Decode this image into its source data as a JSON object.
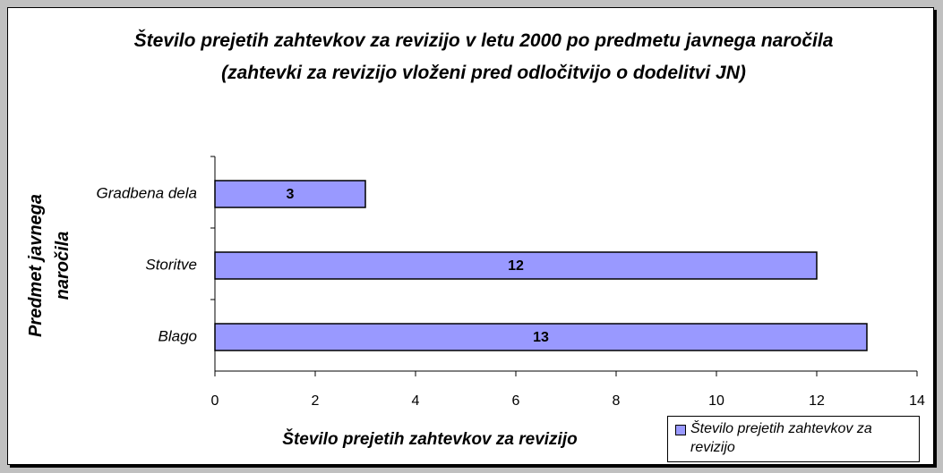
{
  "chart_data": {
    "type": "bar",
    "orientation": "horizontal",
    "title": "Število prejetih zahtevkov za revizijo v letu 2000 po predmetu javnega naročila (zahtevki za revizijo vloženi pred odločitvijo o dodelitvi JN)",
    "x_label": "Število prejetih zahtevkov za revizijo",
    "y_label": "Predmet javnega naročila",
    "categories": [
      "Gradbena dela",
      "Storitve",
      "Blago"
    ],
    "series": [
      {
        "name": "Število prejetih zahtevkov za revizijo",
        "color": "#9999ff",
        "values": [
          3,
          12,
          13
        ]
      }
    ],
    "xlim": [
      0,
      14
    ],
    "xticks": [
      0,
      2,
      4,
      6,
      8,
      10,
      12,
      14
    ],
    "legend": "bottom-right"
  }
}
